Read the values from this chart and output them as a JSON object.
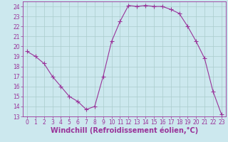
{
  "x": [
    0,
    1,
    2,
    3,
    4,
    5,
    6,
    7,
    8,
    9,
    10,
    11,
    12,
    13,
    14,
    15,
    16,
    17,
    18,
    19,
    20,
    21,
    22,
    23
  ],
  "y": [
    19.5,
    19.0,
    18.3,
    17.0,
    16.0,
    15.0,
    14.5,
    13.7,
    14.0,
    17.0,
    20.5,
    22.5,
    24.1,
    24.0,
    24.1,
    24.0,
    24.0,
    23.7,
    23.3,
    22.0,
    20.5,
    18.8,
    15.5,
    13.2
  ],
  "line_color": "#993399",
  "bg_color": "#cce8ee",
  "grid_color": "#aacccc",
  "xlabel": "Windchill (Refroidissement éolien,°C)",
  "ylim": [
    13,
    24.5
  ],
  "xlim": [
    -0.5,
    23.5
  ],
  "yticks": [
    13,
    14,
    15,
    16,
    17,
    18,
    19,
    20,
    21,
    22,
    23,
    24
  ],
  "xticks": [
    0,
    1,
    2,
    3,
    4,
    5,
    6,
    7,
    8,
    9,
    10,
    11,
    12,
    13,
    14,
    15,
    16,
    17,
    18,
    19,
    20,
    21,
    22,
    23
  ],
  "tick_fontsize": 5.5,
  "xlabel_fontsize": 7.0,
  "marker": "P",
  "marker_size": 2.0,
  "line_width": 0.8
}
